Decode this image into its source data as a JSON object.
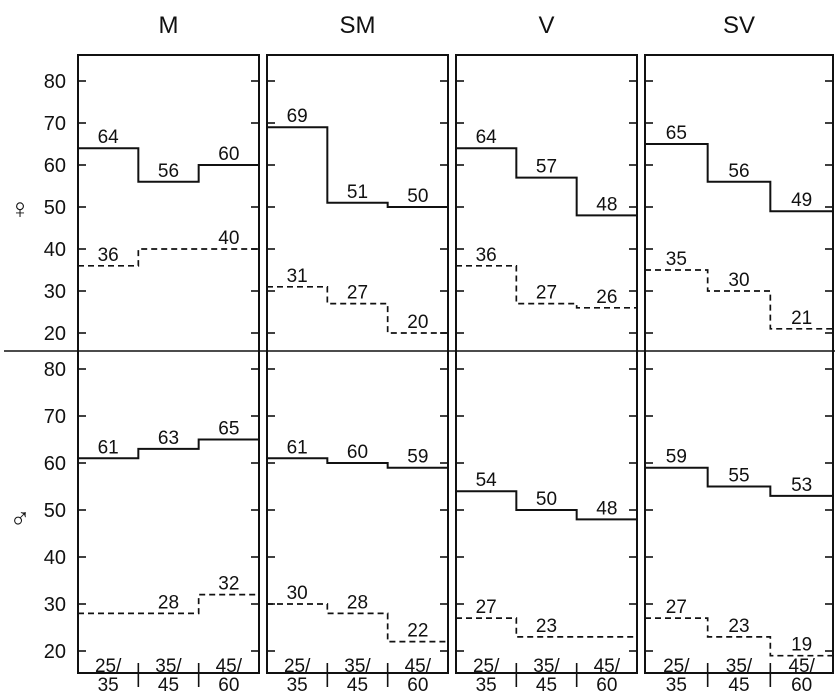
{
  "chart_data": {
    "type": "line",
    "categories": [
      "25/\n35",
      "35/\n45",
      "45/\n60"
    ],
    "y_ticks": [
      20,
      30,
      40,
      50,
      60,
      70,
      80
    ],
    "ylim": [
      15,
      85
    ],
    "row_labels": [
      "♀",
      "♂"
    ],
    "panels": [
      {
        "title": "M",
        "female": {
          "solid": [
            64,
            56,
            60
          ],
          "dashed": [
            36,
            40,
            40
          ],
          "dashed_labels": [
            "36",
            "",
            "40"
          ]
        },
        "male": {
          "solid": [
            61,
            63,
            65
          ],
          "dashed": [
            28,
            28,
            32
          ],
          "dashed_labels": [
            "",
            "28",
            "32"
          ]
        }
      },
      {
        "title": "SM",
        "female": {
          "solid": [
            69,
            51,
            50
          ],
          "dashed": [
            31,
            27,
            20
          ],
          "dashed_labels": [
            "31",
            "27",
            "20"
          ]
        },
        "male": {
          "solid": [
            61,
            60,
            59
          ],
          "dashed": [
            30,
            28,
            22
          ],
          "dashed_labels": [
            "30",
            "28",
            "22"
          ]
        }
      },
      {
        "title": "V",
        "female": {
          "solid": [
            64,
            57,
            48
          ],
          "dashed": [
            36,
            27,
            26
          ],
          "dashed_labels": [
            "36",
            "27",
            "26"
          ]
        },
        "male": {
          "solid": [
            54,
            50,
            48
          ],
          "dashed": [
            27,
            23,
            23
          ],
          "dashed_labels": [
            "27",
            "23",
            ""
          ]
        }
      },
      {
        "title": "SV",
        "female": {
          "solid": [
            65,
            56,
            49
          ],
          "dashed": [
            35,
            30,
            21
          ],
          "dashed_labels": [
            "35",
            "30",
            "21"
          ]
        },
        "male": {
          "solid": [
            59,
            55,
            53
          ],
          "dashed": [
            27,
            23,
            19
          ],
          "dashed_labels": [
            "27",
            "23",
            "19"
          ]
        }
      }
    ],
    "grid": false,
    "legend": "none"
  }
}
